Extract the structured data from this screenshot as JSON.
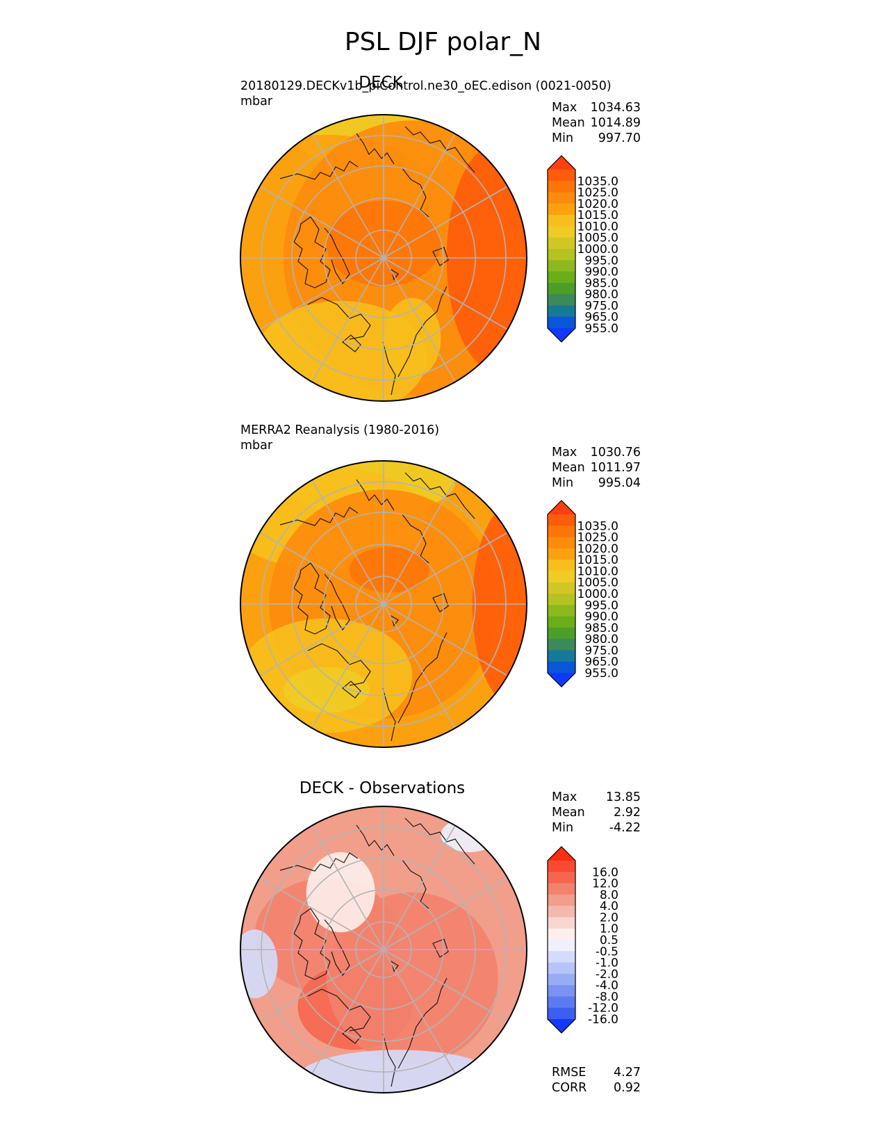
{
  "figure_title": "PSL DJF polar_N",
  "panel1": {
    "title": "DECK",
    "run_label": "20180129.DECKv1b_piControl.ne30_oEC.edison (0021-0050)",
    "units": "mbar",
    "stats": [
      {
        "label": "Max",
        "value": "1034.63"
      },
      {
        "label": "Mean",
        "value": "1014.89"
      },
      {
        "label": "Min",
        "value": "997.70"
      }
    ]
  },
  "panel2": {
    "title": "",
    "run_label": "MERRA2 Reanalysis (1980-2016)",
    "units": "mbar",
    "stats": [
      {
        "label": "Max",
        "value": "1030.76"
      },
      {
        "label": "Mean",
        "value": "1011.97"
      },
      {
        "label": "Min",
        "value": "995.04"
      }
    ]
  },
  "panel3": {
    "title": "DECK - Observations",
    "stats": [
      {
        "label": "Max",
        "value": "13.85"
      },
      {
        "label": "Mean",
        "value": "2.92"
      },
      {
        "label": "Min",
        "value": "-4.22"
      }
    ],
    "metrics": [
      {
        "label": "RMSE",
        "value": "4.27"
      },
      {
        "label": "CORR",
        "value": "0.92"
      }
    ]
  },
  "chart_data": [
    {
      "type": "heatmap",
      "projection": "north-polar-stereographic",
      "title": "DECK",
      "variable": "PSL",
      "season": "DJF",
      "units": "mbar",
      "stats": {
        "max": 1034.63,
        "mean": 1014.89,
        "min": 997.7
      },
      "colorbar_levels": [
        "1035.0",
        "1025.0",
        "1020.0",
        "1015.0",
        "1010.0",
        "1005.0",
        "1000.0",
        "995.0",
        "990.0",
        "985.0",
        "980.0",
        "975.0",
        "965.0",
        "955.0"
      ],
      "colorbar_colors": [
        "#fe3f10",
        "#fe5c0a",
        "#fd7508",
        "#fd8b0c",
        "#fba110",
        "#f7bf1d",
        "#eecc25",
        "#d2c624",
        "#b4c322",
        "#8db91c",
        "#6aae18",
        "#4d9e28",
        "#3a8a5a",
        "#15799a",
        "#0a56d8",
        "#0f3afe"
      ],
      "field": [
        {
          "cx": 0.5,
          "cy": 0.08,
          "rx": 0.3,
          "ry": 0.12,
          "level": 1000
        },
        {
          "cx": 0.3,
          "cy": 0.25,
          "rx": 0.35,
          "ry": 0.18,
          "level": 1010
        },
        {
          "cx": 0.6,
          "cy": 0.5,
          "rx": 0.45,
          "ry": 0.48,
          "level": 1015
        },
        {
          "cx": 0.5,
          "cy": 0.45,
          "rx": 0.2,
          "ry": 0.15,
          "level": 1020
        },
        {
          "cx": 0.9,
          "cy": 0.5,
          "rx": 0.18,
          "ry": 0.4,
          "level": 1025
        },
        {
          "cx": 0.35,
          "cy": 0.85,
          "rx": 0.3,
          "ry": 0.2,
          "level": 1005
        },
        {
          "cx": 0.6,
          "cy": 0.78,
          "rx": 0.1,
          "ry": 0.14,
          "level": 1005
        }
      ]
    },
    {
      "type": "heatmap",
      "projection": "north-polar-stereographic",
      "title": "MERRA2 Reanalysis (1980-2016)",
      "variable": "PSL",
      "season": "DJF",
      "units": "mbar",
      "stats": {
        "max": 1030.76,
        "mean": 1011.97,
        "min": 995.04
      },
      "colorbar_levels": [
        "1035.0",
        "1025.0",
        "1020.0",
        "1015.0",
        "1010.0",
        "1005.0",
        "1000.0",
        "995.0",
        "990.0",
        "985.0",
        "980.0",
        "975.0",
        "965.0",
        "955.0"
      ],
      "colorbar_colors": [
        "#fe3f10",
        "#fe5c0a",
        "#fd7508",
        "#fd8b0c",
        "#fba110",
        "#f7bf1d",
        "#eecc25",
        "#d2c624",
        "#b4c322",
        "#8db91c",
        "#6aae18",
        "#4d9e28",
        "#3a8a5a",
        "#15799a",
        "#0a56d8",
        "#0f3afe"
      ],
      "field": [
        {
          "cx": 0.45,
          "cy": 0.07,
          "rx": 0.3,
          "ry": 0.12,
          "level": 1000
        },
        {
          "cx": 0.3,
          "cy": 0.2,
          "rx": 0.35,
          "ry": 0.18,
          "level": 1005
        },
        {
          "cx": 0.5,
          "cy": 0.5,
          "rx": 0.4,
          "ry": 0.4,
          "level": 1015
        },
        {
          "cx": 0.52,
          "cy": 0.38,
          "rx": 0.14,
          "ry": 0.08,
          "level": 1020
        },
        {
          "cx": 0.95,
          "cy": 0.5,
          "rx": 0.14,
          "ry": 0.35,
          "level": 1025
        },
        {
          "cx": 0.3,
          "cy": 0.75,
          "rx": 0.3,
          "ry": 0.2,
          "level": 1005
        },
        {
          "cx": 0.3,
          "cy": 0.8,
          "rx": 0.15,
          "ry": 0.08,
          "level": 1000
        }
      ]
    },
    {
      "type": "heatmap",
      "projection": "north-polar-stereographic",
      "title": "DECK - Observations",
      "variable": "PSL",
      "season": "DJF",
      "units": "mbar",
      "stats": {
        "max": 13.85,
        "mean": 2.92,
        "min": -4.22
      },
      "metrics": {
        "rmse": 4.27,
        "corr": 0.92
      },
      "colorbar_levels": [
        "16.0",
        "12.0",
        "8.0",
        "4.0",
        "2.0",
        "1.0",
        "0.5",
        "-0.5",
        "-1.0",
        "-2.0",
        "-4.0",
        "-8.0",
        "-12.0",
        "-16.0"
      ],
      "colorbar_colors": [
        "#fe2e10",
        "#fa4a33",
        "#f6664f",
        "#f3826d",
        "#f19e8b",
        "#f4b9ad",
        "#f9d6cf",
        "#fdf0ec",
        "#eef1fd",
        "#d4dcfb",
        "#b6c4f8",
        "#98acf5",
        "#7a93f2",
        "#5c7bef",
        "#3d5ff0",
        "#1338fd"
      ],
      "field": [
        {
          "cx": 0.5,
          "cy": 0.5,
          "rx": 0.48,
          "ry": 0.48,
          "level": 2.0
        },
        {
          "cx": 0.3,
          "cy": 0.45,
          "rx": 0.25,
          "ry": 0.2,
          "level": 4.0
        },
        {
          "cx": 0.4,
          "cy": 0.7,
          "rx": 0.2,
          "ry": 0.15,
          "level": 8.0
        },
        {
          "cx": 0.6,
          "cy": 0.6,
          "rx": 0.3,
          "ry": 0.3,
          "level": 4.0
        },
        {
          "cx": 0.55,
          "cy": 0.95,
          "rx": 0.35,
          "ry": 0.1,
          "level": -2.0
        },
        {
          "cx": 0.05,
          "cy": 0.55,
          "rx": 0.08,
          "ry": 0.12,
          "level": -2.0
        },
        {
          "cx": 0.8,
          "cy": 0.1,
          "rx": 0.1,
          "ry": 0.06,
          "level": -1.0
        },
        {
          "cx": 0.35,
          "cy": 0.3,
          "rx": 0.12,
          "ry": 0.14,
          "level": 0.0
        }
      ]
    }
  ]
}
